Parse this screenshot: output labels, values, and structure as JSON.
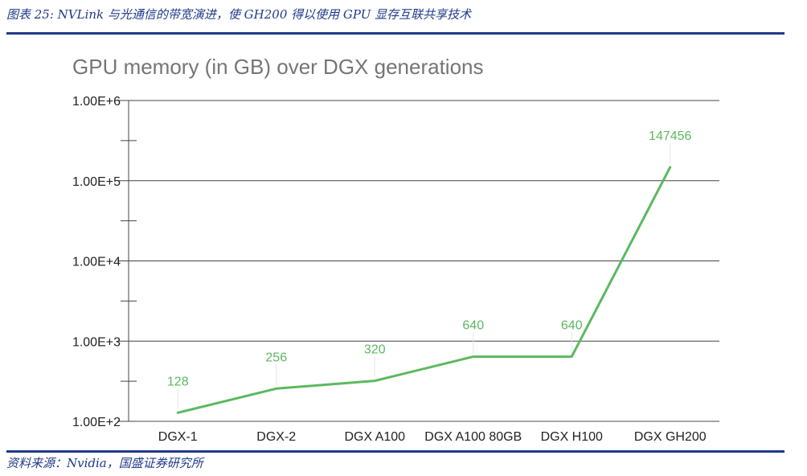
{
  "caption": "图表 25: NVLink 与光通信的带宽演进，使 GH200 得以使用 GPU 显存互联共享技术",
  "source": "资料来源：Nvidia，国盛证券研究所",
  "colors": {
    "accent": "#1f3a8a",
    "line": "#5cb860",
    "grid": "#444444",
    "title": "#757575"
  },
  "chart_data": {
    "type": "line",
    "title": "GPU memory (in GB) over DGX generations",
    "xlabel": "",
    "ylabel": "",
    "yscale": "log",
    "ylim": [
      100,
      1000000
    ],
    "yticks": [
      100,
      1000,
      10000,
      100000,
      1000000
    ],
    "ytick_labels": [
      "1.00E+2",
      "1.00E+3",
      "1.00E+4",
      "1.00E+5",
      "1.00E+6"
    ],
    "categories": [
      "DGX-1",
      "DGX-2",
      "DGX A100",
      "DGX A100 80GB",
      "DGX H100",
      "DGX GH200"
    ],
    "values": [
      128,
      256,
      320,
      640,
      640,
      147456
    ],
    "data_labels": [
      "128",
      "256",
      "320",
      "640",
      "640",
      "147456"
    ],
    "grid": true,
    "legend": "none"
  }
}
